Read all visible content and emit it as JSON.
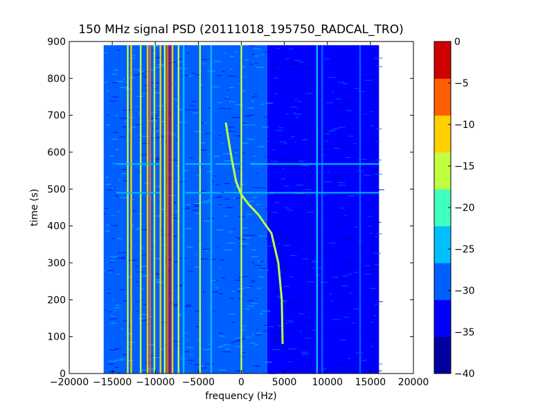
{
  "chart_data": {
    "type": "heatmap",
    "title": "150 MHz signal PSD (20111018_195750_RADCAL_TRO)",
    "xlabel": "frequency (Hz)",
    "ylabel": "time (s)",
    "xlim": [
      -20000,
      20000
    ],
    "ylim": [
      0,
      900
    ],
    "x_ticks": [
      -20000,
      -15000,
      -10000,
      -5000,
      0,
      5000,
      10000,
      15000,
      20000
    ],
    "y_ticks": [
      0,
      100,
      200,
      300,
      400,
      500,
      600,
      700,
      800,
      900
    ],
    "data_extent": {
      "freq_min": -16000,
      "freq_max": 16000,
      "time_min": 0,
      "time_max": 890
    },
    "grid": false,
    "background_level": {
      "freq_ranges": [
        [
          -16000,
          3000,
          -27.5
        ],
        [
          3000,
          16000,
          -32.5
        ]
      ]
    },
    "strong_lines": [
      {
        "freq": -13200,
        "level": -17.5
      },
      {
        "freq": -12800,
        "level": -12.5
      },
      {
        "freq": -11700,
        "level": -17.5
      },
      {
        "freq": -10900,
        "level": -12.5
      },
      {
        "freq": -10600,
        "level": -7.5
      },
      {
        "freq": -10100,
        "level": -17.5
      },
      {
        "freq": -9400,
        "level": -12.5
      },
      {
        "freq": -8900,
        "level": -17.5
      },
      {
        "freq": -8600,
        "level": -7.5
      },
      {
        "freq": -8300,
        "level": -2.5
      },
      {
        "freq": -8000,
        "level": -12.5
      },
      {
        "freq": -7300,
        "level": -17.5
      },
      {
        "freq": -6700,
        "level": -22.5
      },
      {
        "freq": -4800,
        "level": -17.5
      },
      {
        "freq": -3500,
        "level": -22.5
      },
      {
        "freq": 0,
        "level": -17.5
      },
      {
        "freq": 8800,
        "level": -22.5
      },
      {
        "freq": 9400,
        "level": -27.5
      },
      {
        "freq": 13800,
        "level": -27.5
      }
    ],
    "doppler_sweep": {
      "level": -17.5,
      "points": [
        [
          4800,
          80
        ],
        [
          4700,
          200
        ],
        [
          4300,
          300
        ],
        [
          3500,
          380
        ],
        [
          2000,
          430
        ],
        [
          800,
          460
        ],
        [
          0,
          485
        ],
        [
          -600,
          520
        ],
        [
          -1100,
          580
        ],
        [
          -1600,
          650
        ],
        [
          -1800,
          680
        ]
      ]
    },
    "horizontal_artifacts": [
      {
        "time": 490,
        "freq_ranges": [
          [
            -14500,
            -9500
          ],
          [
            -6500,
            -2500
          ],
          [
            -2000,
            16000
          ]
        ],
        "level": -22.5
      },
      {
        "time": 568,
        "freq_ranges": [
          [
            -14500,
            -9500
          ],
          [
            -6500,
            -3500
          ],
          [
            -3000,
            0
          ],
          [
            1000,
            16000
          ]
        ],
        "level": -22.5
      }
    ],
    "colorbar": {
      "min": -40,
      "max": 0,
      "ticks": [
        0,
        -5,
        -10,
        -15,
        -20,
        -25,
        -30,
        -35,
        -40
      ],
      "colors": [
        "#00009f",
        "#0000ff",
        "#0060ff",
        "#00bfff",
        "#40ffbf",
        "#bfff40",
        "#ffcf00",
        "#ff5f00",
        "#cf0000"
      ]
    }
  }
}
